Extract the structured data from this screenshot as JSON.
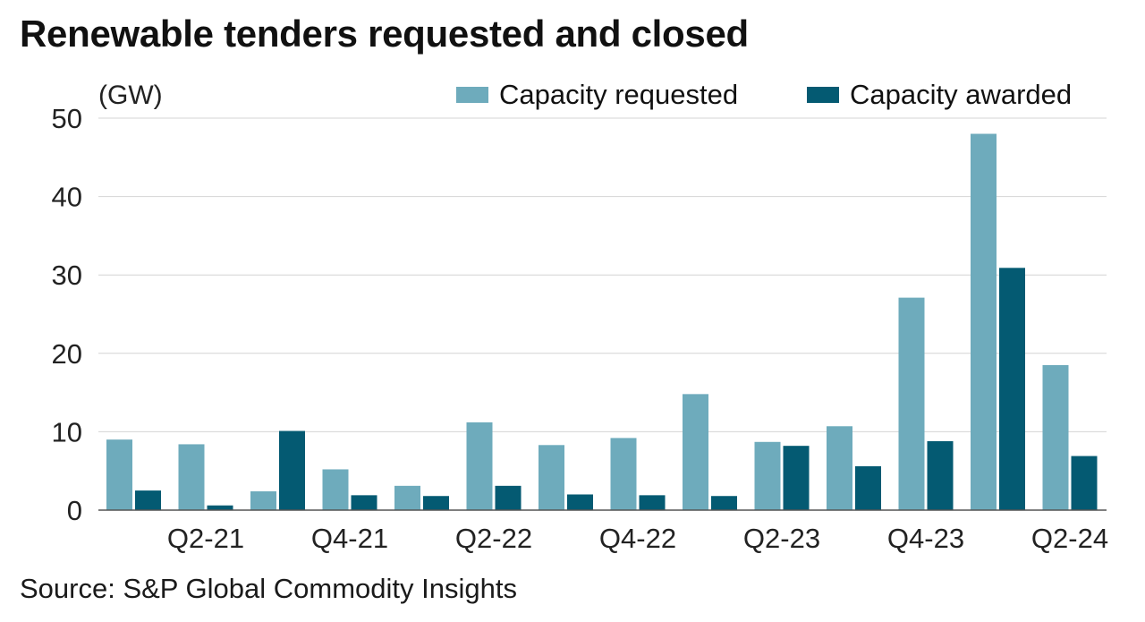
{
  "title": "Renewable tenders requested and closed",
  "source": "Source: S&P Global Commodity Insights",
  "chart_data": {
    "type": "bar",
    "title": "Renewable tenders requested and closed",
    "ylabel": "(GW)",
    "xlabel": "",
    "ylim": [
      0,
      50
    ],
    "yticks": [
      0,
      10,
      20,
      30,
      40,
      50
    ],
    "grid": true,
    "legend": "top-right",
    "categories": [
      "Q1-21",
      "Q2-21",
      "Q3-21",
      "Q4-21",
      "Q1-22",
      "Q2-22",
      "Q3-22",
      "Q4-22",
      "Q1-23",
      "Q2-23",
      "Q3-23",
      "Q4-23",
      "Q1-24",
      "Q2-24"
    ],
    "tick_labels": [
      "",
      "Q2-21",
      "",
      "Q4-21",
      "",
      "Q2-22",
      "",
      "Q4-22",
      "",
      "Q2-23",
      "",
      "Q4-23",
      "",
      "Q2-24"
    ],
    "series": [
      {
        "name": "Capacity requested",
        "color": "#6eabbc",
        "values": [
          9.0,
          8.4,
          2.4,
          5.2,
          3.1,
          11.2,
          8.3,
          9.2,
          14.8,
          8.7,
          10.7,
          27.1,
          48.0,
          18.5
        ]
      },
      {
        "name": "Capacity awarded",
        "color": "#045a72",
        "values": [
          2.5,
          0.6,
          10.1,
          1.9,
          1.8,
          3.1,
          2.0,
          1.9,
          1.8,
          8.2,
          5.6,
          8.8,
          30.9,
          6.9
        ]
      }
    ]
  }
}
